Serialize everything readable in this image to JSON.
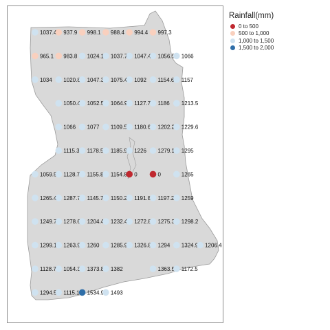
{
  "legend": {
    "title": "Rainfall(mm)",
    "classes": [
      {
        "label": "0 to 500",
        "color": "#c0282f",
        "min": 0,
        "max": 500
      },
      {
        "label": "500 to 1,000",
        "color": "#f9d0be",
        "min": 500,
        "max": 1000
      },
      {
        "label": "1,000 to 1,500",
        "color": "#cfe2f0",
        "min": 1000,
        "max": 1500
      },
      {
        "label": "1,500 to 2,000",
        "color": "#2f6ea8",
        "min": 1500,
        "max": 2000
      }
    ]
  },
  "map_data": {
    "land_color": "#d9d9d9",
    "border_color": "#9a9a9a",
    "stations": [
      {
        "label": "1037.4",
        "value": 1037.4,
        "row": 0,
        "col": 0
      },
      {
        "label": "937.9",
        "value": 937.9,
        "row": 0,
        "col": 1
      },
      {
        "label": "998.1",
        "value": 998.1,
        "row": 0,
        "col": 2
      },
      {
        "label": "988.4",
        "value": 988.4,
        "row": 0,
        "col": 3
      },
      {
        "label": "994.4",
        "value": 994.4,
        "row": 0,
        "col": 4
      },
      {
        "label": "997.3",
        "value": 997.3,
        "row": 0,
        "col": 5
      },
      {
        "label": "965.1",
        "value": 965.1,
        "row": 1,
        "col": 0
      },
      {
        "label": "983.8",
        "value": 983.8,
        "row": 1,
        "col": 1
      },
      {
        "label": "1024.1",
        "value": 1024.1,
        "row": 1,
        "col": 2
      },
      {
        "label": "1037.7",
        "value": 1037.7,
        "row": 1,
        "col": 3
      },
      {
        "label": "1047.4",
        "value": 1047.4,
        "row": 1,
        "col": 4
      },
      {
        "label": "1056.5",
        "value": 1056.5,
        "row": 1,
        "col": 5
      },
      {
        "label": "1066",
        "value": 1066,
        "row": 1,
        "col": 6
      },
      {
        "label": "1034",
        "value": 1034,
        "row": 2,
        "col": 0
      },
      {
        "label": "1020.8",
        "value": 1020.8,
        "row": 2,
        "col": 1
      },
      {
        "label": "1047.3",
        "value": 1047.3,
        "row": 2,
        "col": 2
      },
      {
        "label": "1075.4",
        "value": 1075.4,
        "row": 2,
        "col": 3
      },
      {
        "label": "1092",
        "value": 1092,
        "row": 2,
        "col": 4
      },
      {
        "label": "1154.6",
        "value": 1154.6,
        "row": 2,
        "col": 5
      },
      {
        "label": "1157",
        "value": 1157,
        "row": 2,
        "col": 6
      },
      {
        "label": "1050.4",
        "value": 1050.4,
        "row": 3,
        "col": 1
      },
      {
        "label": "1052.5",
        "value": 1052.5,
        "row": 3,
        "col": 2
      },
      {
        "label": "1064.9",
        "value": 1064.9,
        "row": 3,
        "col": 3
      },
      {
        "label": "1127.7",
        "value": 1127.7,
        "row": 3,
        "col": 4
      },
      {
        "label": "1186",
        "value": 1186,
        "row": 3,
        "col": 5
      },
      {
        "label": "1213.5",
        "value": 1213.5,
        "row": 3,
        "col": 6
      },
      {
        "label": "1066",
        "value": 1066,
        "row": 4,
        "col": 1
      },
      {
        "label": "1077",
        "value": 1077,
        "row": 4,
        "col": 2
      },
      {
        "label": "1109.5",
        "value": 1109.5,
        "row": 4,
        "col": 3
      },
      {
        "label": "1180.6",
        "value": 1180.6,
        "row": 4,
        "col": 4
      },
      {
        "label": "1202.2",
        "value": 1202.2,
        "row": 4,
        "col": 5
      },
      {
        "label": "1229.6",
        "value": 1229.6,
        "row": 4,
        "col": 6
      },
      {
        "label": "1115.3",
        "value": 1115.3,
        "row": 5,
        "col": 1
      },
      {
        "label": "1178.5",
        "value": 1178.5,
        "row": 5,
        "col": 2
      },
      {
        "label": "1185.9",
        "value": 1185.9,
        "row": 5,
        "col": 3
      },
      {
        "label": "1226",
        "value": 1226,
        "row": 5,
        "col": 4
      },
      {
        "label": "1279.1",
        "value": 1279.1,
        "row": 5,
        "col": 5
      },
      {
        "label": "1295",
        "value": 1295,
        "row": 5,
        "col": 6
      },
      {
        "label": "1059.5",
        "value": 1059.5,
        "row": 6,
        "col": 0
      },
      {
        "label": "1128.7",
        "value": 1128.7,
        "row": 6,
        "col": 1
      },
      {
        "label": "1155.8",
        "value": 1155.8,
        "row": 6,
        "col": 2
      },
      {
        "label": "1154.8",
        "value": 1154.8,
        "row": 6,
        "col": 3
      },
      {
        "label": "0",
        "value": 0,
        "row": 6,
        "col": 4
      },
      {
        "label": "0",
        "value": 0,
        "row": 6,
        "col": 5
      },
      {
        "label": "1265",
        "value": 1265,
        "row": 6,
        "col": 6
      },
      {
        "label": "1265.4",
        "value": 1265.4,
        "row": 7,
        "col": 0
      },
      {
        "label": "1287.7",
        "value": 1287.7,
        "row": 7,
        "col": 1
      },
      {
        "label": "1145.7",
        "value": 1145.7,
        "row": 7,
        "col": 2
      },
      {
        "label": "1150.2",
        "value": 1150.2,
        "row": 7,
        "col": 3
      },
      {
        "label": "1191.8",
        "value": 1191.8,
        "row": 7,
        "col": 4
      },
      {
        "label": "1197.2",
        "value": 1197.2,
        "row": 7,
        "col": 5
      },
      {
        "label": "1259",
        "value": 1259,
        "row": 7,
        "col": 6
      },
      {
        "label": "1249.7",
        "value": 1249.7,
        "row": 8,
        "col": 0
      },
      {
        "label": "1278.6",
        "value": 1278.6,
        "row": 8,
        "col": 1
      },
      {
        "label": "1204.4",
        "value": 1204.4,
        "row": 8,
        "col": 2
      },
      {
        "label": "1232.4",
        "value": 1232.4,
        "row": 8,
        "col": 3
      },
      {
        "label": "1272.8",
        "value": 1272.8,
        "row": 8,
        "col": 4
      },
      {
        "label": "1275.3",
        "value": 1275.3,
        "row": 8,
        "col": 5
      },
      {
        "label": "1298.2",
        "value": 1298.2,
        "row": 8,
        "col": 6
      },
      {
        "label": "1299.1",
        "value": 1299.1,
        "row": 9,
        "col": 0
      },
      {
        "label": "1263.9",
        "value": 1263.9,
        "row": 9,
        "col": 1
      },
      {
        "label": "1260",
        "value": 1260,
        "row": 9,
        "col": 2
      },
      {
        "label": "1285.9",
        "value": 1285.9,
        "row": 9,
        "col": 3
      },
      {
        "label": "1326.8",
        "value": 1326.8,
        "row": 9,
        "col": 4
      },
      {
        "label": "1294",
        "value": 1294,
        "row": 9,
        "col": 5
      },
      {
        "label": "1324.9",
        "value": 1324.9,
        "row": 9,
        "col": 6
      },
      {
        "label": "1206.4",
        "value": 1206.4,
        "row": 9,
        "col": 7
      },
      {
        "label": "1128.7",
        "value": 1128.7,
        "row": 10,
        "col": 0
      },
      {
        "label": "1054.3",
        "value": 1054.3,
        "row": 10,
        "col": 1
      },
      {
        "label": "1373.8",
        "value": 1373.8,
        "row": 10,
        "col": 2
      },
      {
        "label": "1382",
        "value": 1382,
        "row": 10,
        "col": 3
      },
      {
        "label": "1363.5",
        "value": 1363.5,
        "row": 10,
        "col": 5
      },
      {
        "label": "1172.5",
        "value": 1172.5,
        "row": 10,
        "col": 6
      },
      {
        "label": "1294.5",
        "value": 1294.5,
        "row": 11,
        "col": 0
      },
      {
        "label": "1115.1",
        "value": 1115.1,
        "row": 11,
        "col": 1
      },
      {
        "label": "1534.9",
        "value": 1534.9,
        "row": 11,
        "col": 2
      },
      {
        "label": "1493",
        "value": 1493,
        "row": 11,
        "col": 3
      }
    ]
  }
}
